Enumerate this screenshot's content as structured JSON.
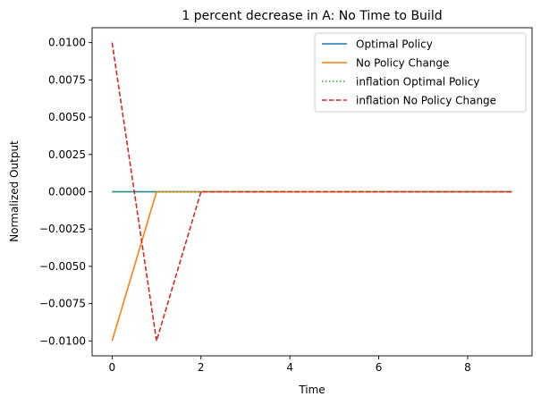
{
  "chart_data": {
    "type": "line",
    "title": "1 percent decrease in A: No Time to Build",
    "xlabel": "Time",
    "ylabel": "Normalized Output",
    "xlim": [
      -0.45,
      9.45
    ],
    "ylim": [
      -0.011,
      0.011
    ],
    "xticks": [
      0,
      2,
      4,
      6,
      8
    ],
    "yticks": [
      -0.01,
      -0.0075,
      -0.005,
      -0.0025,
      0.0,
      0.0025,
      0.005,
      0.0075,
      0.01
    ],
    "ytick_labels": [
      "−0.0100",
      "−0.0075",
      "−0.0050",
      "−0.0025",
      "0.0000",
      "0.0025",
      "0.0050",
      "0.0075",
      "0.0100"
    ],
    "grid": false,
    "legend_position": "top-right",
    "x": [
      0,
      1,
      2,
      3,
      4,
      5,
      6,
      7,
      8,
      9
    ],
    "series": [
      {
        "name": "Optimal Policy",
        "color": "#1f77b4",
        "dash": "solid",
        "values": [
          0,
          0,
          0,
          0,
          0,
          0,
          0,
          0,
          0,
          0
        ]
      },
      {
        "name": "No Policy Change",
        "color": "#ff7f0e",
        "dash": "solid",
        "values": [
          -0.01,
          0,
          0,
          0,
          0,
          0,
          0,
          0,
          0,
          0
        ]
      },
      {
        "name": "inflation Optimal Policy",
        "color": "#2ca02c",
        "dash": "dotted",
        "values": [
          0,
          0,
          0,
          0,
          0,
          0,
          0,
          0,
          0,
          0
        ]
      },
      {
        "name": "inflation No Policy Change",
        "color": "#d62728",
        "dash": "dashed",
        "values": [
          0.01,
          -0.01,
          0,
          0,
          0,
          0,
          0,
          0,
          0,
          0
        ]
      }
    ]
  }
}
